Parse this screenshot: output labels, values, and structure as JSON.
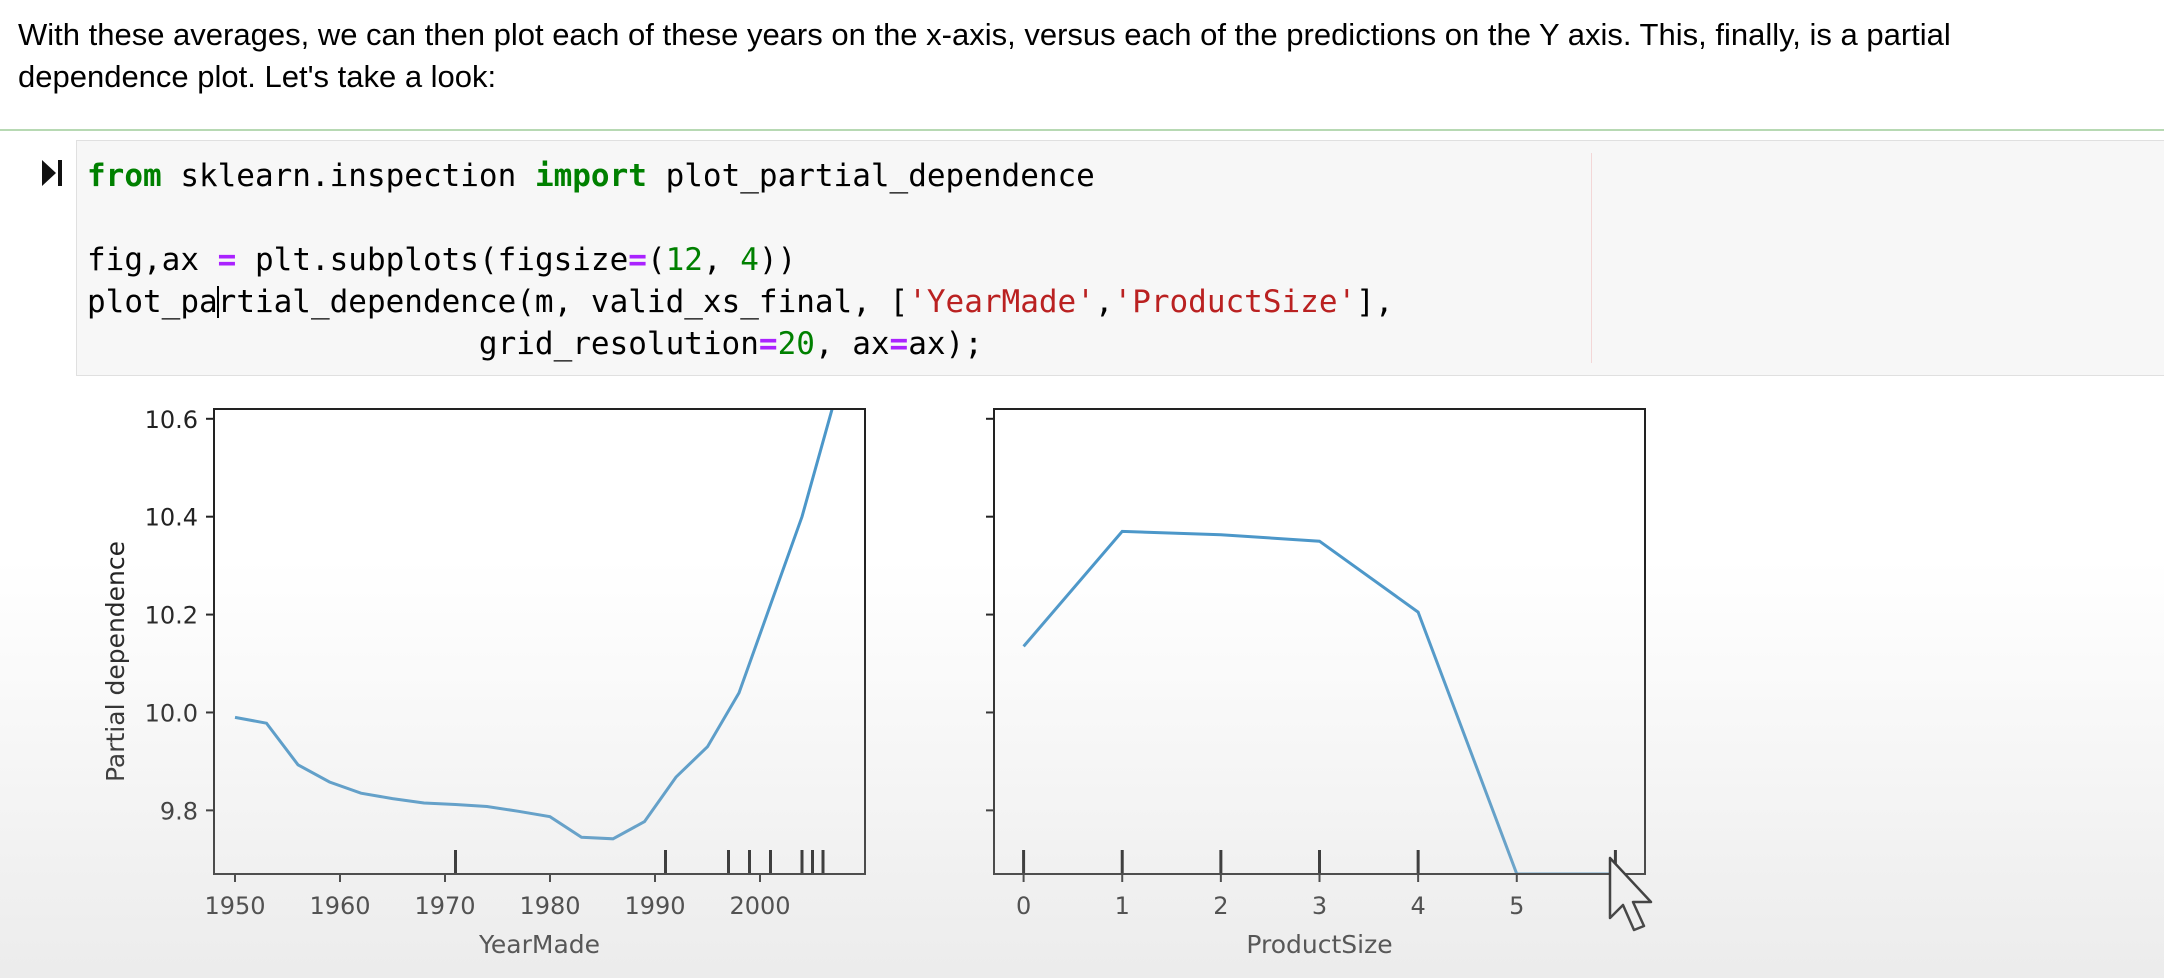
{
  "markdown": {
    "line1": "With these averages, we can then plot each of these years on the x-axis, versus each of the predictions on the Y axis. This, finally, is a partial",
    "line2": "dependence plot. Let's take a look:"
  },
  "code": {
    "line1": {
      "kw1": "from",
      "mod": " sklearn.inspection ",
      "kw2": "import",
      "name": " plot_partial_dependence"
    },
    "line2": {
      "a": "fig,ax ",
      "eq": "=",
      "b": " plt.subplots(figsize",
      "eq2": "=",
      "c": "(",
      "n1": "12",
      "d": ", ",
      "n2": "4",
      "e": "))"
    },
    "line3": {
      "a": "plot_pa",
      "b": "rtial_dependence(m, valid_xs_final, [",
      "s1": "'YearMade'",
      "c": ",",
      "s2": "'ProductSize'",
      "d": "],"
    },
    "line4": {
      "a": "                     grid_resolution",
      "eq": "=",
      "n": "20",
      "b": ", ax",
      "eq2": "=",
      "c": "ax);"
    }
  },
  "chart_data": [
    {
      "type": "line",
      "xlabel": "YearMade",
      "ylabel": "Partial dependence",
      "xlim": [
        1948,
        2010
      ],
      "ylim": [
        9.67,
        10.62
      ],
      "xticks": [
        1950,
        1960,
        1970,
        1980,
        1990,
        2000
      ],
      "yticks": [
        9.8,
        10.0,
        10.2,
        10.4,
        10.6
      ],
      "ytick_labels": [
        "9.8",
        "10.0",
        "10.2",
        "10.4",
        "10.6"
      ],
      "deciles": [
        1971,
        1991,
        1997,
        1999,
        2001,
        2004,
        2005,
        2006
      ],
      "color": "#4c97c9",
      "x": [
        1950,
        1953,
        1956,
        1959,
        1962,
        1965,
        1968,
        1971,
        1974,
        1977,
        1980,
        1983,
        1986,
        1989,
        1992,
        1995,
        1998,
        2001,
        2004,
        2007
      ],
      "y": [
        9.99,
        9.978,
        9.893,
        9.858,
        9.835,
        9.824,
        9.815,
        9.812,
        9.808,
        9.798,
        9.787,
        9.745,
        9.742,
        9.777,
        9.868,
        9.93,
        10.04,
        10.22,
        10.4,
        10.63
      ]
    },
    {
      "type": "line",
      "xlabel": "ProductSize",
      "ylabel": "",
      "xlim": [
        -0.3,
        6.3
      ],
      "ylim": [
        9.67,
        10.62
      ],
      "xticks": [
        0,
        1,
        2,
        3,
        4,
        5
      ],
      "yticks": [
        9.8,
        10.0,
        10.2,
        10.4,
        10.6
      ],
      "ytick_labels": [],
      "deciles": [
        0,
        1,
        2,
        3,
        4,
        6
      ],
      "color": "#4c97c9",
      "x": [
        0,
        1,
        2,
        3,
        4,
        5,
        6
      ],
      "y": [
        10.135,
        10.37,
        10.363,
        10.35,
        10.205,
        9.67,
        9.67
      ]
    }
  ]
}
